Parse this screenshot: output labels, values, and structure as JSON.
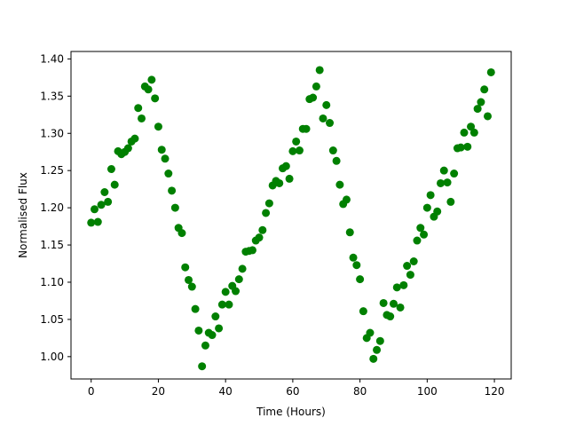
{
  "chart_data": {
    "type": "scatter",
    "title": "",
    "xlabel": "Time (Hours)",
    "ylabel": "Normalised Flux",
    "xlim": [
      -6,
      125
    ],
    "ylim": [
      0.97,
      1.41
    ],
    "xticks": [
      0,
      20,
      40,
      60,
      80,
      100,
      120
    ],
    "xtick_labels": [
      "0",
      "20",
      "40",
      "60",
      "80",
      "100",
      "120"
    ],
    "yticks": [
      1.0,
      1.05,
      1.1,
      1.15,
      1.2,
      1.25,
      1.3,
      1.35,
      1.4
    ],
    "ytick_labels": [
      "1.00",
      "1.05",
      "1.10",
      "1.15",
      "1.20",
      "1.25",
      "1.30",
      "1.35",
      "1.40"
    ],
    "grid": false,
    "legend": "none",
    "marker_color": "#008000",
    "x": [
      0,
      1,
      2,
      3,
      4,
      5,
      6,
      7,
      8,
      9,
      10,
      11,
      12,
      13,
      14,
      15,
      16,
      17,
      18,
      19,
      20,
      21,
      22,
      23,
      24,
      25,
      26,
      27,
      28,
      29,
      30,
      31,
      32,
      33,
      34,
      35,
      36,
      37,
      38,
      39,
      40,
      41,
      42,
      43,
      44,
      45,
      46,
      47,
      48,
      49,
      50,
      51,
      52,
      53,
      54,
      55,
      56,
      57,
      58,
      59,
      60,
      61,
      62,
      63,
      64,
      65,
      66,
      67,
      68,
      69,
      70,
      71,
      72,
      73,
      74,
      75,
      76,
      77,
      78,
      79,
      80,
      81,
      82,
      83,
      84,
      85,
      86,
      87,
      88,
      89,
      90,
      91,
      92,
      93,
      94,
      95,
      96,
      97,
      98,
      99,
      100,
      101,
      102,
      103,
      104,
      105,
      106,
      107,
      108,
      109,
      110,
      111,
      112,
      113,
      114,
      115,
      116,
      117,
      118,
      119
    ],
    "y": [
      1.18,
      1.198,
      1.181,
      1.204,
      1.221,
      1.208,
      1.252,
      1.231,
      1.276,
      1.272,
      1.275,
      1.28,
      1.289,
      1.293,
      1.334,
      1.32,
      1.363,
      1.359,
      1.372,
      1.347,
      1.309,
      1.278,
      1.266,
      1.246,
      1.223,
      1.2,
      1.173,
      1.166,
      1.12,
      1.103,
      1.094,
      1.064,
      1.035,
      0.987,
      1.015,
      1.032,
      1.029,
      1.054,
      1.038,
      1.07,
      1.087,
      1.07,
      1.095,
      1.088,
      1.104,
      1.118,
      1.141,
      1.142,
      1.143,
      1.156,
      1.16,
      1.17,
      1.193,
      1.206,
      1.23,
      1.236,
      1.233,
      1.253,
      1.256,
      1.239,
      1.276,
      1.289,
      1.277,
      1.306,
      1.306,
      1.346,
      1.348,
      1.363,
      1.385,
      1.32,
      1.338,
      1.314,
      1.277,
      1.263,
      1.231,
      1.205,
      1.211,
      1.167,
      1.133,
      1.123,
      1.104,
      1.061,
      1.025,
      1.032,
      0.997,
      1.009,
      1.021,
      1.072,
      1.056,
      1.054,
      1.071,
      1.093,
      1.066,
      1.096,
      1.122,
      1.11,
      1.128,
      1.156,
      1.173,
      1.164,
      1.2,
      1.217,
      1.188,
      1.195,
      1.233,
      1.25,
      1.234,
      1.208,
      1.246,
      1.28,
      1.281,
      1.301,
      1.282,
      1.309,
      1.301,
      1.333,
      1.342,
      1.359,
      1.323,
      1.382
    ]
  }
}
